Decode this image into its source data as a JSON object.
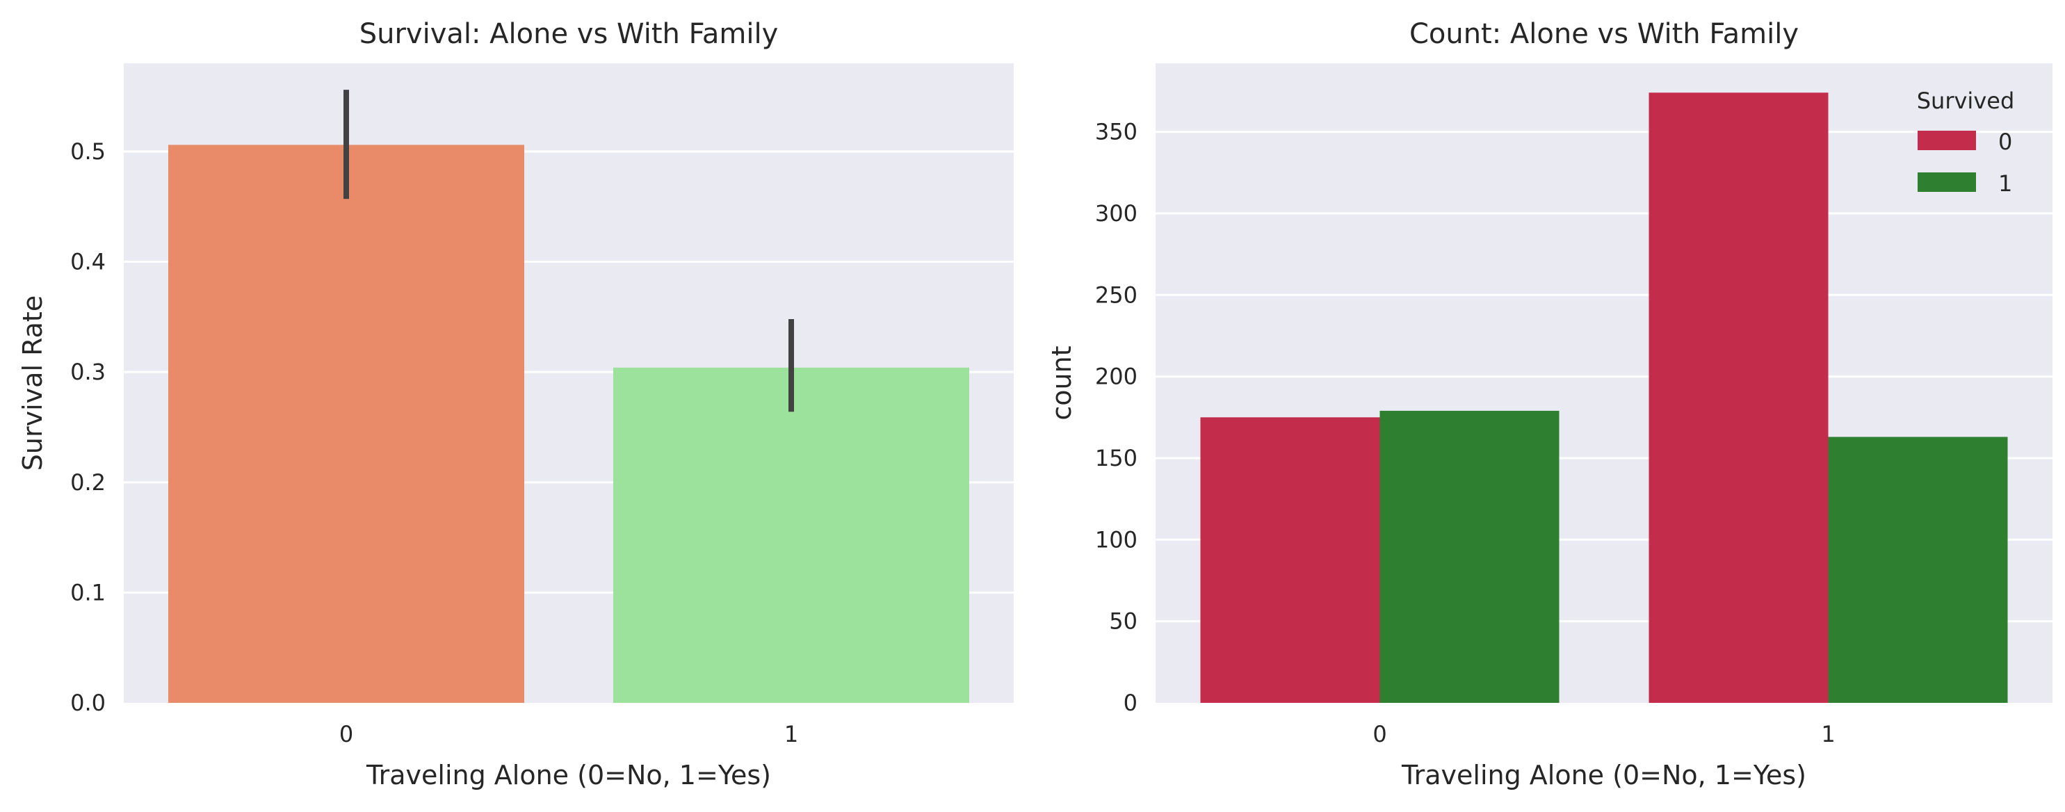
{
  "chart_data": [
    {
      "type": "bar",
      "title": "Survival: Alone vs With Family",
      "xlabel": "Traveling Alone (0=No, 1=Yes)",
      "ylabel": "Survival Rate",
      "categories": [
        "0",
        "1"
      ],
      "values": [
        0.506,
        0.304
      ],
      "error_bars": [
        [
          0.457,
          0.556
        ],
        [
          0.264,
          0.348
        ]
      ],
      "bar_colors": [
        "#e98a69",
        "#9ce19c"
      ],
      "error_bar_color": "#424242",
      "ylim": [
        0,
        0.58
      ],
      "yticks": [
        0.0,
        0.1,
        0.2,
        0.3,
        0.4,
        0.5
      ],
      "ytick_labels": [
        "0.0",
        "0.1",
        "0.2",
        "0.3",
        "0.4",
        "0.5"
      ],
      "grid": "horizontal"
    },
    {
      "type": "bar",
      "title": "Count: Alone vs With Family",
      "xlabel": "Traveling Alone (0=No, 1=Yes)",
      "ylabel": "count",
      "categories": [
        "0",
        "1"
      ],
      "series": [
        {
          "name": "0",
          "values": [
            175,
            374
          ],
          "color": "#c42c4b"
        },
        {
          "name": "1",
          "values": [
            179,
            163
          ],
          "color": "#2e7f2f"
        }
      ],
      "legend": {
        "title": "Survived",
        "placement": "top-right"
      },
      "ylim": [
        0,
        392
      ],
      "yticks": [
        0,
        50,
        100,
        150,
        200,
        250,
        300,
        350
      ],
      "ytick_labels": [
        "0",
        "50",
        "100",
        "150",
        "200",
        "250",
        "300",
        "350"
      ],
      "grid": "horizontal"
    }
  ],
  "style": {
    "plot_background": "#eaeaf2",
    "grid_color": "#ffffff",
    "text_color": "#262626"
  }
}
